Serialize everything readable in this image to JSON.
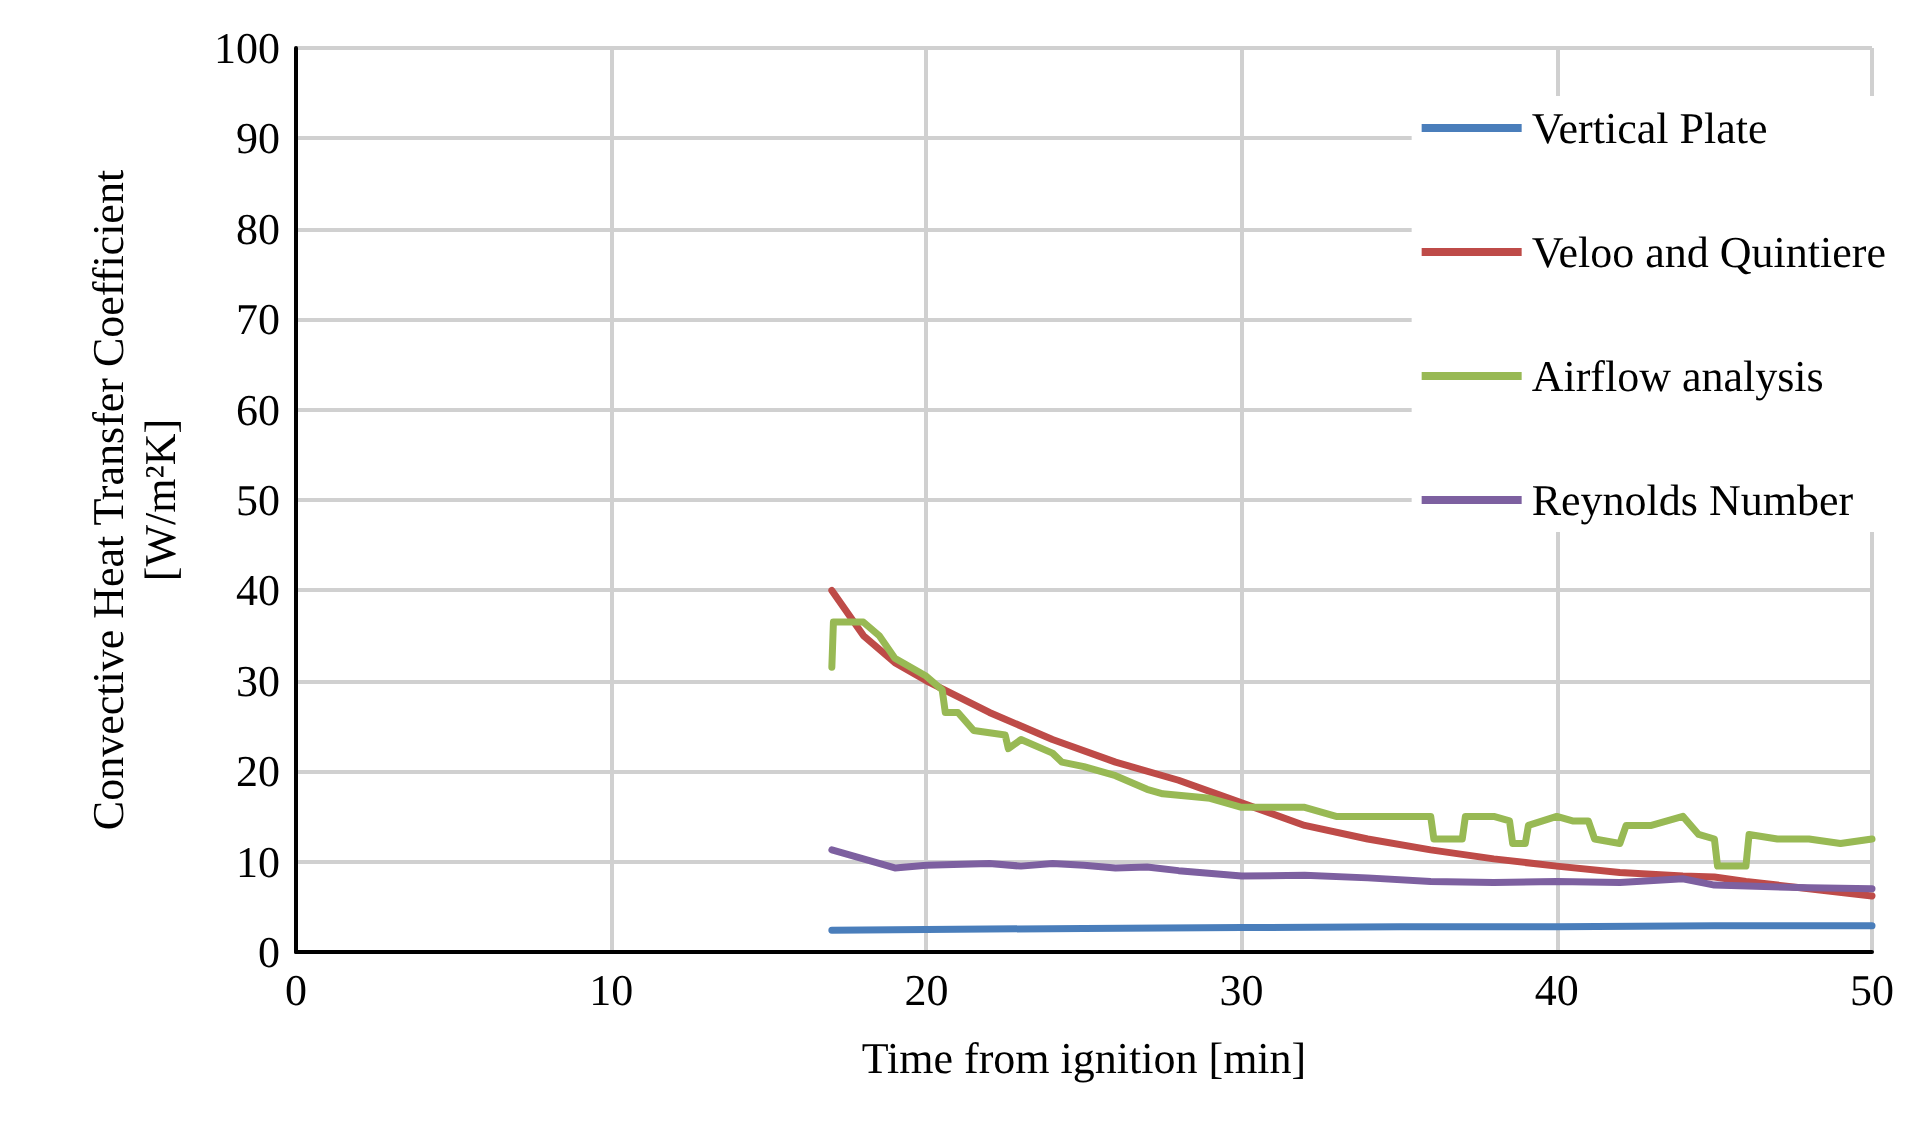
{
  "chart_data": {
    "type": "line",
    "xlabel": "Time from ignition [min]",
    "ylabel": "Convective Heat Transfer Coefficient\n[W/m²K]",
    "xlim": [
      0,
      50
    ],
    "xticks": [
      0,
      10,
      20,
      30,
      40,
      50
    ],
    "ylim": [
      0,
      100
    ],
    "yticks": [
      0,
      10,
      20,
      30,
      40,
      50,
      60,
      70,
      80,
      90,
      100
    ],
    "grid": true,
    "legend": "top right",
    "marker": "none",
    "line_style": "solid",
    "series": [
      {
        "name": "Vertical Plate",
        "color": "#4a7ebb",
        "x": [
          17,
          20,
          25,
          30,
          35,
          40,
          45,
          50
        ],
        "values": [
          2.4,
          2.5,
          2.6,
          2.7,
          2.8,
          2.8,
          2.9,
          2.9
        ]
      },
      {
        "name": "Veloo and Quintiere",
        "color": "#be4b48",
        "x": [
          17,
          18,
          19,
          20,
          22,
          24,
          26,
          28,
          30,
          32,
          34,
          36,
          38,
          40,
          42,
          44,
          45,
          46,
          48,
          50
        ],
        "values": [
          40,
          35,
          32,
          30,
          26.5,
          23.5,
          21,
          19,
          16.5,
          14,
          12.5,
          11.3,
          10.3,
          9.5,
          8.8,
          8.4,
          8.3,
          7.8,
          7,
          6.2
        ]
      },
      {
        "name": "Airflow analysis",
        "color": "#98b954",
        "x": [
          17,
          17.05,
          18,
          18.5,
          19,
          20,
          20.5,
          20.6,
          21,
          21.5,
          22.5,
          22.6,
          23,
          24,
          24.3,
          25,
          25.5,
          26,
          27,
          27.5,
          29,
          30,
          31,
          32,
          33,
          34,
          35,
          36,
          36.1,
          37,
          37.1,
          38,
          38.5,
          38.6,
          39,
          39.1,
          40,
          40.5,
          41,
          41.2,
          42,
          42.2,
          43,
          44,
          44.5,
          45,
          45.1,
          46,
          46.1,
          47,
          48,
          49,
          50
        ],
        "values": [
          31.5,
          36.5,
          36.5,
          35,
          32.5,
          30.5,
          29,
          26.5,
          26.5,
          24.5,
          24,
          22.5,
          23.5,
          22,
          21,
          20.5,
          20,
          19.5,
          18,
          17.5,
          17,
          16,
          16,
          16,
          15,
          15,
          15,
          15,
          12.5,
          12.5,
          15,
          15,
          14.5,
          12,
          12,
          14,
          15,
          14.5,
          14.5,
          12.5,
          12,
          14,
          14,
          15,
          13,
          12.5,
          9.5,
          9.5,
          13,
          12.5,
          12.5,
          12,
          12.5
        ]
      },
      {
        "name": "Reynolds Number",
        "color": "#7d60a0",
        "x": [
          17,
          19,
          20,
          22,
          23,
          24,
          25,
          26,
          27,
          28,
          30,
          32,
          34,
          36,
          38,
          40,
          42,
          44,
          45,
          48,
          50
        ],
        "values": [
          11.3,
          9.3,
          9.6,
          9.8,
          9.5,
          9.8,
          9.6,
          9.3,
          9.4,
          9,
          8.4,
          8.5,
          8.2,
          7.8,
          7.7,
          7.8,
          7.7,
          8.1,
          7.4,
          7.1,
          7
        ]
      }
    ]
  }
}
